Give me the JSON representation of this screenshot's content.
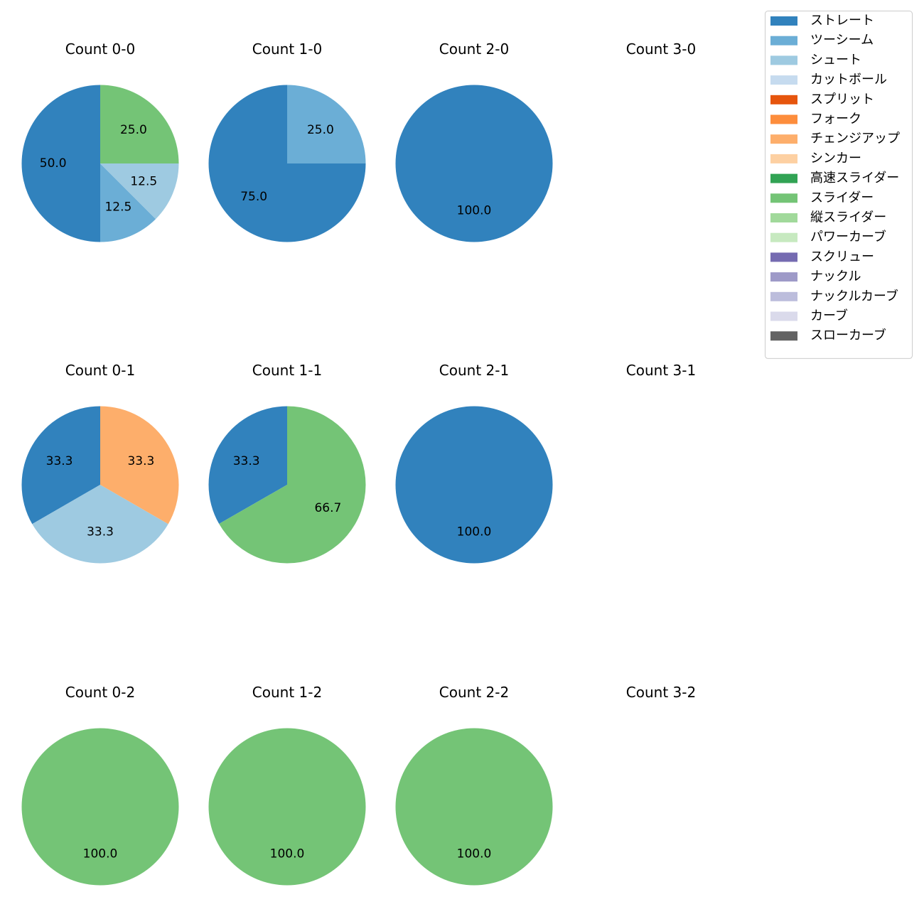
{
  "chart_data": {
    "type": "pie",
    "legend": {
      "placement": "top-right",
      "entries": [
        {
          "name": "ストレート",
          "color": "#3182bd"
        },
        {
          "name": "ツーシーム",
          "color": "#6baed6"
        },
        {
          "name": "シュート",
          "color": "#9ecae1"
        },
        {
          "name": "カットボール",
          "color": "#c6dbef"
        },
        {
          "name": "スプリット",
          "color": "#e6550d"
        },
        {
          "name": "フォーク",
          "color": "#fd8d3c"
        },
        {
          "name": "チェンジアップ",
          "color": "#fdae6b"
        },
        {
          "name": "シンカー",
          "color": "#fdd0a2"
        },
        {
          "name": "高速スライダー",
          "color": "#31a354"
        },
        {
          "name": "スライダー",
          "color": "#74c476"
        },
        {
          "name": "縦スライダー",
          "color": "#a1d99b"
        },
        {
          "name": "パワーカーブ",
          "color": "#c7e9c0"
        },
        {
          "name": "スクリュー",
          "color": "#756bb1"
        },
        {
          "name": "ナックル",
          "color": "#9e9ac8"
        },
        {
          "name": "ナックルカーブ",
          "color": "#bcbddc"
        },
        {
          "name": "カーブ",
          "color": "#dadaeb"
        },
        {
          "name": "スローカーブ",
          "color": "#636363"
        }
      ]
    },
    "grid": {
      "rows": 3,
      "cols": 4
    },
    "subplots": [
      {
        "title": "Count 0-0",
        "row": 0,
        "col": 0,
        "slices": [
          {
            "pitch": "ストレート",
            "value": 50.0,
            "label": "50.0"
          },
          {
            "pitch": "ツーシーム",
            "value": 12.5,
            "label": "12.5"
          },
          {
            "pitch": "シュート",
            "value": 12.5,
            "label": "12.5"
          },
          {
            "pitch": "スライダー",
            "value": 25.0,
            "label": "25.0"
          }
        ]
      },
      {
        "title": "Count 1-0",
        "row": 0,
        "col": 1,
        "slices": [
          {
            "pitch": "ストレート",
            "value": 75.0,
            "label": "75.0"
          },
          {
            "pitch": "ツーシーム",
            "value": 25.0,
            "label": "25.0"
          }
        ]
      },
      {
        "title": "Count 2-0",
        "row": 0,
        "col": 2,
        "slices": [
          {
            "pitch": "ストレート",
            "value": 100.0,
            "label": "100.0"
          }
        ]
      },
      {
        "title": "Count 3-0",
        "row": 0,
        "col": 3,
        "slices": []
      },
      {
        "title": "Count 0-1",
        "row": 1,
        "col": 0,
        "slices": [
          {
            "pitch": "ストレート",
            "value": 33.3,
            "label": "33.3"
          },
          {
            "pitch": "シュート",
            "value": 33.3,
            "label": "33.3"
          },
          {
            "pitch": "チェンジアップ",
            "value": 33.3,
            "label": "33.3"
          }
        ]
      },
      {
        "title": "Count 1-1",
        "row": 1,
        "col": 1,
        "slices": [
          {
            "pitch": "ストレート",
            "value": 33.3,
            "label": "33.3"
          },
          {
            "pitch": "スライダー",
            "value": 66.7,
            "label": "66.7"
          }
        ]
      },
      {
        "title": "Count 2-1",
        "row": 1,
        "col": 2,
        "slices": [
          {
            "pitch": "ストレート",
            "value": 100.0,
            "label": "100.0"
          }
        ]
      },
      {
        "title": "Count 3-1",
        "row": 1,
        "col": 3,
        "slices": []
      },
      {
        "title": "Count 0-2",
        "row": 2,
        "col": 0,
        "slices": [
          {
            "pitch": "スライダー",
            "value": 100.0,
            "label": "100.0"
          }
        ]
      },
      {
        "title": "Count 1-2",
        "row": 2,
        "col": 1,
        "slices": [
          {
            "pitch": "スライダー",
            "value": 100.0,
            "label": "100.0"
          }
        ]
      },
      {
        "title": "Count 2-2",
        "row": 2,
        "col": 2,
        "slices": [
          {
            "pitch": "スライダー",
            "value": 100.0,
            "label": "100.0"
          }
        ]
      },
      {
        "title": "Count 3-2",
        "row": 2,
        "col": 3,
        "slices": []
      }
    ]
  }
}
